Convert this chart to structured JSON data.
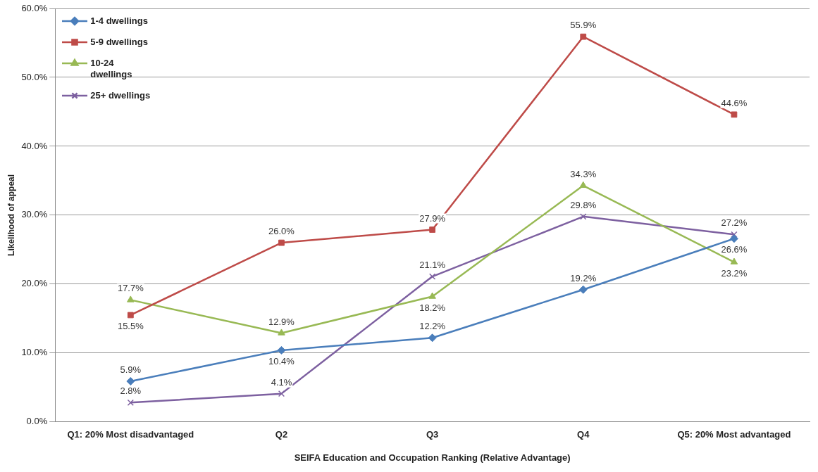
{
  "chart_data": {
    "type": "line",
    "xlabel": "SEIFA Education and Occupation Ranking (Relative Advantage)",
    "ylabel": "Likelihood of appeal",
    "categories": [
      "Q1: 20% Most disadvantaged",
      "Q2",
      "Q3",
      "Q4",
      "Q5: 20% Most advantaged"
    ],
    "series": [
      {
        "name": "1-4 dwellings",
        "color": "#4a7ebb",
        "marker": "diamond",
        "values": [
          5.9,
          10.4,
          12.2,
          19.2,
          26.6
        ],
        "value_labels": [
          "5.9%",
          "10.4%",
          "12.2%",
          "19.2%",
          "26.6%"
        ]
      },
      {
        "name": "5-9 dwellings",
        "color": "#be4b48",
        "marker": "square",
        "values": [
          15.5,
          26.0,
          27.9,
          55.9,
          44.6
        ],
        "value_labels": [
          "15.5%",
          "26.0%",
          "27.9%",
          "55.9%",
          "44.6%"
        ]
      },
      {
        "name": "10-24 dwellings",
        "color": "#98b954",
        "marker": "triangle",
        "values": [
          17.7,
          12.9,
          18.2,
          34.3,
          23.2
        ],
        "value_labels": [
          "17.7%",
          "12.9%",
          "18.2%",
          "34.3%",
          "23.2%"
        ]
      },
      {
        "name": "25+ dwellings",
        "color": "#7d60a0",
        "marker": "cross",
        "values": [
          2.8,
          4.1,
          21.1,
          29.8,
          27.2
        ],
        "value_labels": [
          "2.8%",
          "4.1%",
          "21.1%",
          "29.8%",
          "27.2%"
        ]
      }
    ],
    "ylim": [
      0,
      60
    ],
    "yticks": [
      {
        "value": 0,
        "label": "0.0%"
      },
      {
        "value": 10,
        "label": "10.0%"
      },
      {
        "value": 20,
        "label": "20.0%"
      },
      {
        "value": 30,
        "label": "30.0%"
      },
      {
        "value": 40,
        "label": "40.0%"
      },
      {
        "value": 50,
        "label": "50.0%"
      },
      {
        "value": 60,
        "label": "60.0%"
      }
    ],
    "grid": "y",
    "legend": "top left"
  }
}
